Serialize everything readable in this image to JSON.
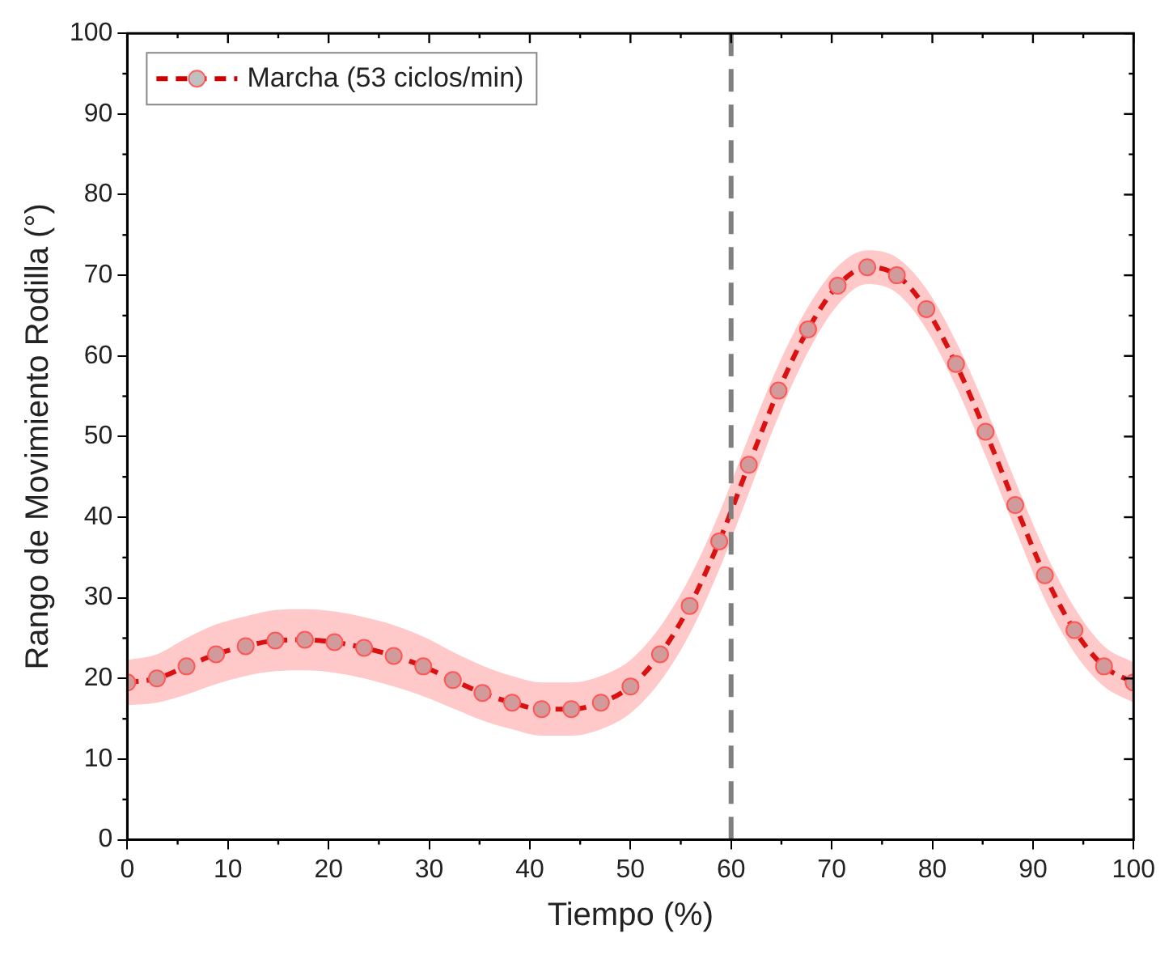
{
  "chart_data": {
    "type": "line",
    "xlabel": "Tiempo (%)",
    "ylabel": "Rango de Movimiento Rodilla (°)",
    "x": [
      0,
      2.94,
      5.88,
      8.82,
      11.76,
      14.71,
      17.65,
      20.59,
      23.53,
      26.47,
      29.41,
      32.35,
      35.29,
      38.24,
      41.18,
      44.12,
      47.06,
      50,
      52.94,
      55.88,
      58.82,
      61.76,
      64.71,
      67.65,
      70.59,
      73.53,
      76.47,
      79.41,
      82.35,
      85.29,
      88.24,
      91.18,
      94.12,
      97.06,
      100
    ],
    "series": [
      {
        "name": "Marcha (53 ciclos/min)",
        "color": "#cc0000",
        "marker": "circle",
        "line_style": "dashed",
        "values": [
          19.5,
          20,
          21.5,
          23,
          24,
          24.7,
          24.8,
          24.5,
          23.8,
          22.8,
          21.5,
          19.8,
          18.2,
          17,
          16.2,
          16.2,
          17,
          19,
          23,
          29,
          37,
          46.5,
          55.7,
          63.3,
          68.7,
          71,
          70,
          65.8,
          59,
          50.6,
          41.5,
          32.8,
          26,
          21.5,
          19.5
        ],
        "lower": [
          16.7,
          17,
          18,
          19.3,
          20.3,
          20.9,
          21,
          20.7,
          20,
          19,
          17.8,
          16.3,
          14.8,
          13.7,
          12.9,
          12.9,
          13.7,
          15.7,
          19.6,
          25.5,
          33.5,
          43,
          52.5,
          60.5,
          66.3,
          68.9,
          67.8,
          63.3,
          56.2,
          47.6,
          38.5,
          29.8,
          23.2,
          19,
          17
        ],
        "upper": [
          22.3,
          23,
          25,
          26.7,
          27.7,
          28.5,
          28.6,
          28.3,
          27.6,
          26.6,
          25.2,
          23.3,
          21.6,
          20.3,
          19.5,
          19.5,
          20.3,
          22.3,
          26.4,
          32.5,
          40.5,
          50,
          58.9,
          66.1,
          71.1,
          73.1,
          72.2,
          68.3,
          61.8,
          53.6,
          44.5,
          35.8,
          28.8,
          24,
          22
        ]
      }
    ],
    "xlim": [
      0,
      100
    ],
    "xticks": [
      0,
      10,
      20,
      30,
      40,
      50,
      60,
      70,
      80,
      90,
      100
    ],
    "ylim": [
      0,
      100
    ],
    "yticks": [
      0,
      10,
      20,
      30,
      40,
      50,
      60,
      70,
      80,
      90,
      100
    ],
    "ref_lines": [
      {
        "axis": "x",
        "value": 60,
        "color": "#808080",
        "line_style": "dashed"
      }
    ],
    "legend": "top left",
    "grid": false
  }
}
